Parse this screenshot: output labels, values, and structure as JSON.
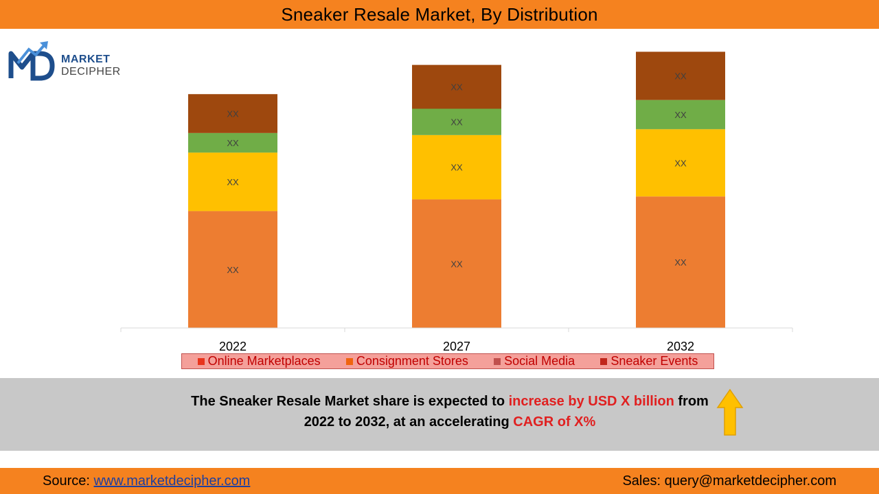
{
  "header": {
    "title": "Sneaker Resale Market, By Distribution"
  },
  "logo": {
    "line1": "MARKET",
    "line2": "DECIPHER"
  },
  "colors": {
    "header_bar": "#f5821f",
    "segment_1": "#ed7d31",
    "segment_2": "#ffc000",
    "segment_3": "#70ad47",
    "segment_4": "#9e480e",
    "legend_bg": "#f4a09a",
    "legend_text": "#c00000",
    "highlight": "#e02020",
    "band": "#c8c8c8"
  },
  "chart_data": {
    "type": "bar",
    "stacked": true,
    "categories": [
      "2022",
      "2027",
      "2032"
    ],
    "series": [
      {
        "values": [
          40,
          44,
          45
        ],
        "label": "XX",
        "color": "#ed7d31"
      },
      {
        "values": [
          20,
          22,
          23
        ],
        "label": "XX",
        "color": "#ffc000"
      },
      {
        "values": [
          6.7,
          9,
          10
        ],
        "label": "XX",
        "color": "#70ad47"
      },
      {
        "values": [
          13.3,
          15,
          16.5
        ],
        "label": "XX",
        "color": "#9e480e"
      }
    ],
    "ylim": [
      0,
      100
    ],
    "grid": false,
    "legend_position": "bottom",
    "legend": [
      {
        "name": "Online Marketplaces",
        "color": "#e8341c"
      },
      {
        "name": "Consignment Stores",
        "color": "#f0640e"
      },
      {
        "name": "Social Media",
        "color": "#c0504d"
      },
      {
        "name": "Sneaker Events",
        "color": "#c0271c"
      }
    ]
  },
  "summary": {
    "line1_a": "The Sneaker Resale Market share is expected to ",
    "line1_b": "increase by USD X billion",
    "line1_c": " from",
    "line2_a": "2022 to 2032, at an accelerating ",
    "line2_b": "CAGR of X%"
  },
  "footer": {
    "source_label": "Source: ",
    "source_link": "www.marketdecipher.com",
    "sales": "Sales: query@marketdecipher.com"
  }
}
